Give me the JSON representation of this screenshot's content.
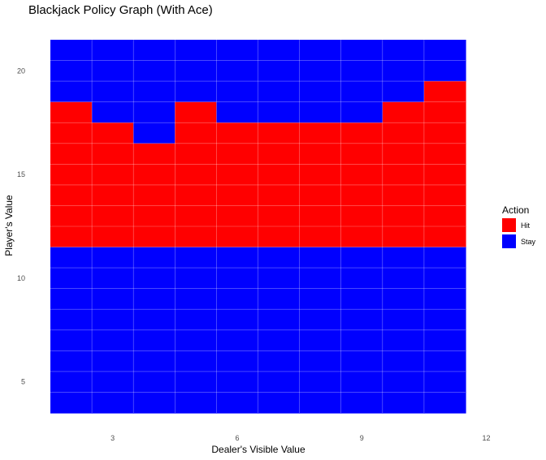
{
  "chart_data": {
    "type": "heatmap",
    "title": "Blackjack Policy Graph (With Ace)",
    "xlabel": "Dealer's Visible Value",
    "ylabel": "Player's Value",
    "x_values": [
      2,
      3,
      4,
      5,
      6,
      7,
      8,
      9,
      10,
      11
    ],
    "y_values": [
      4,
      5,
      6,
      7,
      8,
      9,
      10,
      11,
      12,
      13,
      14,
      15,
      16,
      17,
      18,
      19,
      20,
      21
    ],
    "x_ticks": [
      3,
      6,
      9,
      12
    ],
    "y_ticks": [
      5,
      10,
      15,
      20
    ],
    "grid": true,
    "legend": {
      "title": "Action",
      "position": "right",
      "entries": [
        {
          "label": "Hit",
          "color": "#FF0000"
        },
        {
          "label": "Stay",
          "color": "#0000FF"
        }
      ]
    },
    "colors": {
      "Hit": "#FF0000",
      "Stay": "#0000FF"
    },
    "rows": [
      {
        "player": 21,
        "actions": [
          "Stay",
          "Stay",
          "Stay",
          "Stay",
          "Stay",
          "Stay",
          "Stay",
          "Stay",
          "Stay",
          "Stay"
        ]
      },
      {
        "player": 20,
        "actions": [
          "Stay",
          "Stay",
          "Stay",
          "Stay",
          "Stay",
          "Stay",
          "Stay",
          "Stay",
          "Stay",
          "Stay"
        ]
      },
      {
        "player": 19,
        "actions": [
          "Stay",
          "Stay",
          "Stay",
          "Stay",
          "Stay",
          "Stay",
          "Stay",
          "Stay",
          "Stay",
          "Hit"
        ]
      },
      {
        "player": 18,
        "actions": [
          "Hit",
          "Stay",
          "Stay",
          "Hit",
          "Stay",
          "Stay",
          "Stay",
          "Stay",
          "Hit",
          "Hit"
        ]
      },
      {
        "player": 17,
        "actions": [
          "Hit",
          "Hit",
          "Stay",
          "Hit",
          "Hit",
          "Hit",
          "Hit",
          "Hit",
          "Hit",
          "Hit"
        ]
      },
      {
        "player": 16,
        "actions": [
          "Hit",
          "Hit",
          "Hit",
          "Hit",
          "Hit",
          "Hit",
          "Hit",
          "Hit",
          "Hit",
          "Hit"
        ]
      },
      {
        "player": 15,
        "actions": [
          "Hit",
          "Hit",
          "Hit",
          "Hit",
          "Hit",
          "Hit",
          "Hit",
          "Hit",
          "Hit",
          "Hit"
        ]
      },
      {
        "player": 14,
        "actions": [
          "Hit",
          "Hit",
          "Hit",
          "Hit",
          "Hit",
          "Hit",
          "Hit",
          "Hit",
          "Hit",
          "Hit"
        ]
      },
      {
        "player": 13,
        "actions": [
          "Hit",
          "Hit",
          "Hit",
          "Hit",
          "Hit",
          "Hit",
          "Hit",
          "Hit",
          "Hit",
          "Hit"
        ]
      },
      {
        "player": 12,
        "actions": [
          "Hit",
          "Hit",
          "Hit",
          "Hit",
          "Hit",
          "Hit",
          "Hit",
          "Hit",
          "Hit",
          "Hit"
        ]
      },
      {
        "player": 11,
        "actions": [
          "Stay",
          "Stay",
          "Stay",
          "Stay",
          "Stay",
          "Stay",
          "Stay",
          "Stay",
          "Stay",
          "Stay"
        ]
      },
      {
        "player": 10,
        "actions": [
          "Stay",
          "Stay",
          "Stay",
          "Stay",
          "Stay",
          "Stay",
          "Stay",
          "Stay",
          "Stay",
          "Stay"
        ]
      },
      {
        "player": 9,
        "actions": [
          "Stay",
          "Stay",
          "Stay",
          "Stay",
          "Stay",
          "Stay",
          "Stay",
          "Stay",
          "Stay",
          "Stay"
        ]
      },
      {
        "player": 8,
        "actions": [
          "Stay",
          "Stay",
          "Stay",
          "Stay",
          "Stay",
          "Stay",
          "Stay",
          "Stay",
          "Stay",
          "Stay"
        ]
      },
      {
        "player": 7,
        "actions": [
          "Stay",
          "Stay",
          "Stay",
          "Stay",
          "Stay",
          "Stay",
          "Stay",
          "Stay",
          "Stay",
          "Stay"
        ]
      },
      {
        "player": 6,
        "actions": [
          "Stay",
          "Stay",
          "Stay",
          "Stay",
          "Stay",
          "Stay",
          "Stay",
          "Stay",
          "Stay",
          "Stay"
        ]
      },
      {
        "player": 5,
        "actions": [
          "Stay",
          "Stay",
          "Stay",
          "Stay",
          "Stay",
          "Stay",
          "Stay",
          "Stay",
          "Stay",
          "Stay"
        ]
      },
      {
        "player": 4,
        "actions": [
          "Stay",
          "Stay",
          "Stay",
          "Stay",
          "Stay",
          "Stay",
          "Stay",
          "Stay",
          "Stay",
          "Stay"
        ]
      }
    ]
  }
}
